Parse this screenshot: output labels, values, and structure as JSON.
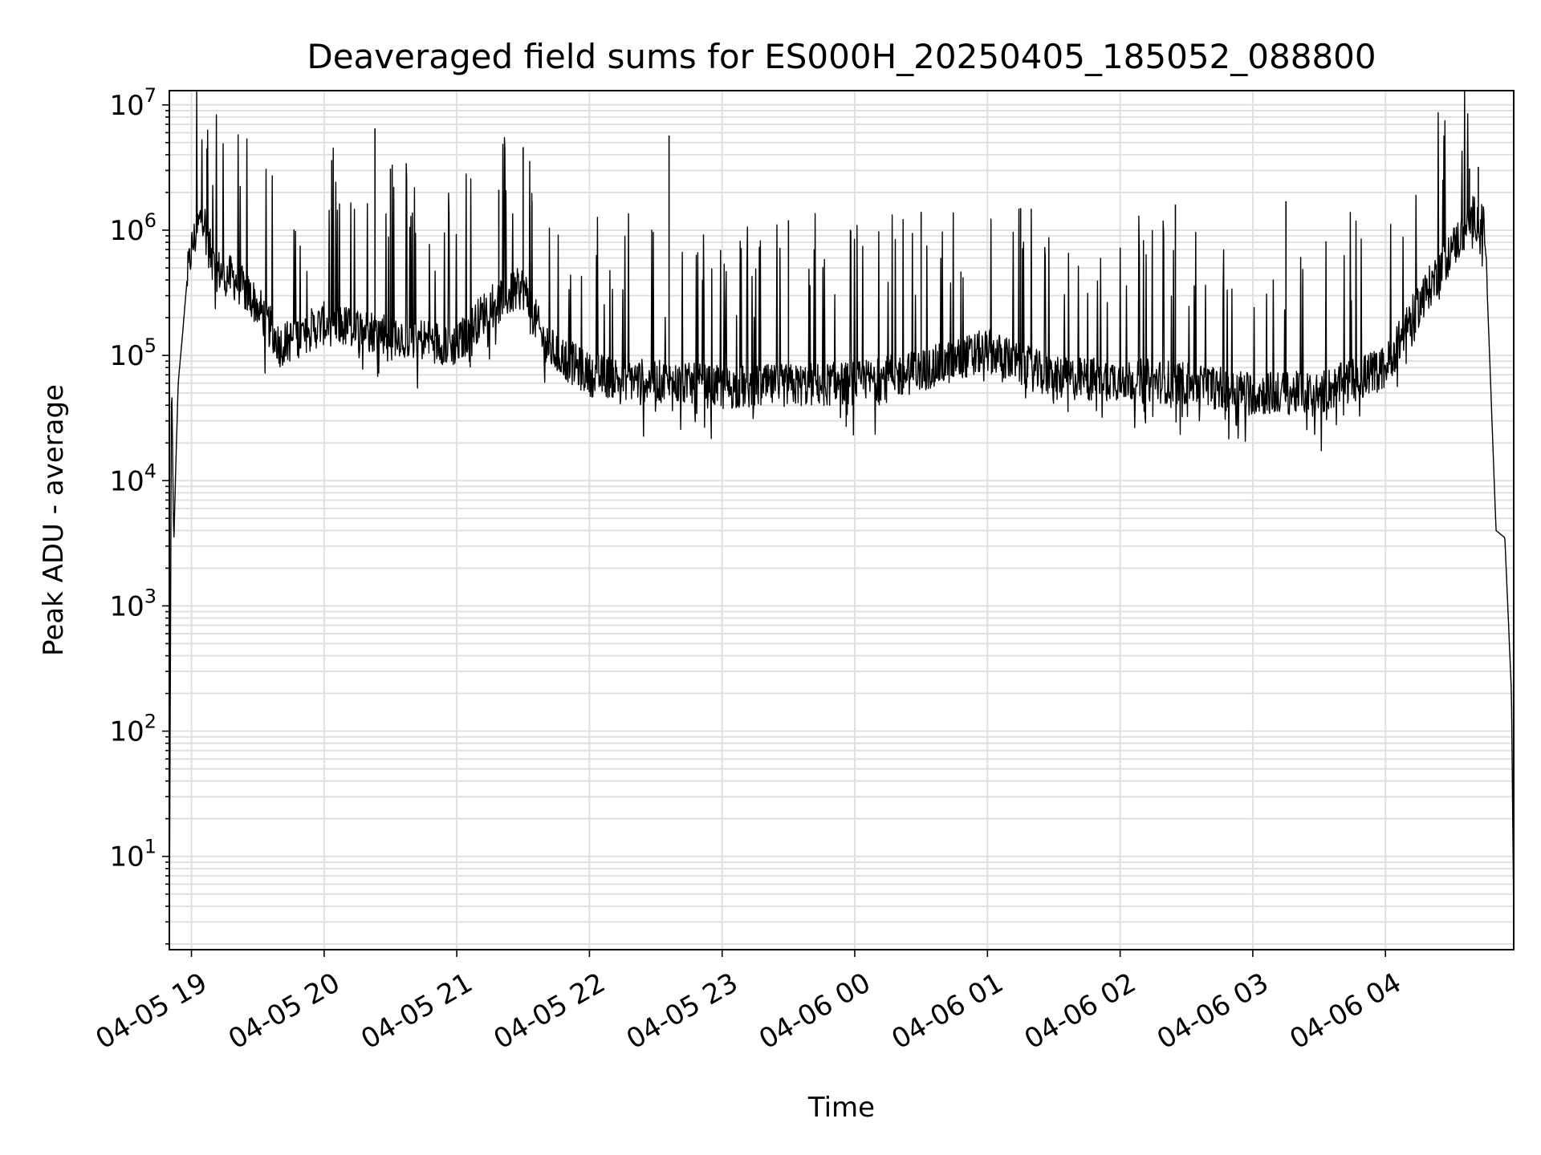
{
  "chart_data": {
    "type": "line",
    "title": "Deaveraged field sums for ES000H_20250405_185052_088800",
    "xlabel": "Time",
    "ylabel": "Peak ADU - average",
    "yscale": "log",
    "ylim": [
      1.8,
      13000000
    ],
    "xlim": [
      "2025-04-05 18:50",
      "2025-04-06 04:58"
    ],
    "grid": true,
    "grid_color": "#e0e0e0",
    "line_color": "#000000",
    "x_ticks": [
      {
        "value": "2025-04-05 19:00",
        "label": "04-05 19"
      },
      {
        "value": "2025-04-05 20:00",
        "label": "04-05 20"
      },
      {
        "value": "2025-04-05 21:00",
        "label": "04-05 21"
      },
      {
        "value": "2025-04-05 22:00",
        "label": "04-05 22"
      },
      {
        "value": "2025-04-05 23:00",
        "label": "04-05 23"
      },
      {
        "value": "2025-04-06 00:00",
        "label": "04-06 00"
      },
      {
        "value": "2025-04-06 01:00",
        "label": "04-06 01"
      },
      {
        "value": "2025-04-06 02:00",
        "label": "04-06 02"
      },
      {
        "value": "2025-04-06 03:00",
        "label": "04-06 03"
      },
      {
        "value": "2025-04-06 04:00",
        "label": "04-06 04"
      }
    ],
    "y_ticks": [
      {
        "value": 10,
        "base": "10",
        "exp": "1"
      },
      {
        "value": 100,
        "base": "10",
        "exp": "2"
      },
      {
        "value": 1000,
        "base": "10",
        "exp": "3"
      },
      {
        "value": 10000,
        "base": "10",
        "exp": "4"
      },
      {
        "value": 100000,
        "base": "10",
        "exp": "5"
      },
      {
        "value": 1000000,
        "base": "10",
        "exp": "6"
      },
      {
        "value": 10000000,
        "base": "10",
        "exp": "7"
      }
    ],
    "series": [
      {
        "envelope": [
          {
            "x": "2025-04-05 18:50",
            "y": 2
          },
          {
            "x": "2025-04-05 18:51",
            "y": 80000
          },
          {
            "x": "2025-04-05 18:52",
            "y": 3000
          },
          {
            "x": "2025-04-05 18:53",
            "y": 15000
          },
          {
            "x": "2025-04-05 18:54",
            "y": 60000
          },
          {
            "x": "2025-04-05 18:56",
            "y": 150000
          },
          {
            "x": "2025-04-05 18:58",
            "y": 400000
          },
          {
            "x": "2025-04-05 19:00",
            "y": 700000
          },
          {
            "x": "2025-04-05 19:05",
            "y": 1400000
          },
          {
            "x": "2025-04-05 19:10",
            "y": 500000
          },
          {
            "x": "2025-04-05 19:20",
            "y": 400000
          },
          {
            "x": "2025-04-05 19:30",
            "y": 250000
          },
          {
            "x": "2025-04-05 19:40",
            "y": 120000
          },
          {
            "x": "2025-04-05 20:00",
            "y": 180000
          },
          {
            "x": "2025-04-05 20:30",
            "y": 150000
          },
          {
            "x": "2025-04-05 21:00",
            "y": 120000
          },
          {
            "x": "2025-04-05 21:15",
            "y": 250000
          },
          {
            "x": "2025-04-05 21:30",
            "y": 350000
          },
          {
            "x": "2025-04-05 21:40",
            "y": 120000
          },
          {
            "x": "2025-04-05 22:00",
            "y": 70000
          },
          {
            "x": "2025-04-05 23:00",
            "y": 55000
          },
          {
            "x": "2025-04-06 00:00",
            "y": 60000
          },
          {
            "x": "2025-04-06 00:30",
            "y": 75000
          },
          {
            "x": "2025-04-06 01:00",
            "y": 110000
          },
          {
            "x": "2025-04-06 01:30",
            "y": 65000
          },
          {
            "x": "2025-04-06 02:00",
            "y": 65000
          },
          {
            "x": "2025-04-06 02:30",
            "y": 60000
          },
          {
            "x": "2025-04-06 03:00",
            "y": 50000
          },
          {
            "x": "2025-04-06 03:30",
            "y": 50000
          },
          {
            "x": "2025-04-06 04:00",
            "y": 80000
          },
          {
            "x": "2025-04-06 04:15",
            "y": 250000
          },
          {
            "x": "2025-04-06 04:30",
            "y": 700000
          },
          {
            "x": "2025-04-06 04:40",
            "y": 1300000
          },
          {
            "x": "2025-04-06 04:45",
            "y": 1000000
          },
          {
            "x": "2025-04-06 04:50",
            "y": 4000
          },
          {
            "x": "2025-04-06 04:54",
            "y": 3500
          },
          {
            "x": "2025-04-06 04:57",
            "y": 200
          },
          {
            "x": "2025-04-06 04:58",
            "y": 3
          }
        ],
        "spikes": [
          {
            "x": "2025-04-05 19:07",
            "y": 4500000
          },
          {
            "x": "2025-04-05 20:23",
            "y": 6500000
          },
          {
            "x": "2025-04-05 20:30",
            "y": 3100000
          },
          {
            "x": "2025-04-05 21:19",
            "y": 2100000
          },
          {
            "x": "2025-04-05 21:30",
            "y": 4600000
          },
          {
            "x": "2025-04-05 21:34",
            "y": 1700000
          },
          {
            "x": "2025-04-05 22:36",
            "y": 5700000
          },
          {
            "x": "2025-04-05 23:30",
            "y": 1200000
          },
          {
            "x": "2025-04-06 00:30",
            "y": 1400000
          },
          {
            "x": "2025-04-06 01:15",
            "y": 1500000
          },
          {
            "x": "2025-04-06 02:25",
            "y": 1600000
          },
          {
            "x": "2025-04-06 03:15",
            "y": 1700000
          },
          {
            "x": "2025-04-06 04:38",
            "y": 3100000
          },
          {
            "x": "2025-04-06 04:42",
            "y": 3200000
          }
        ]
      }
    ]
  }
}
